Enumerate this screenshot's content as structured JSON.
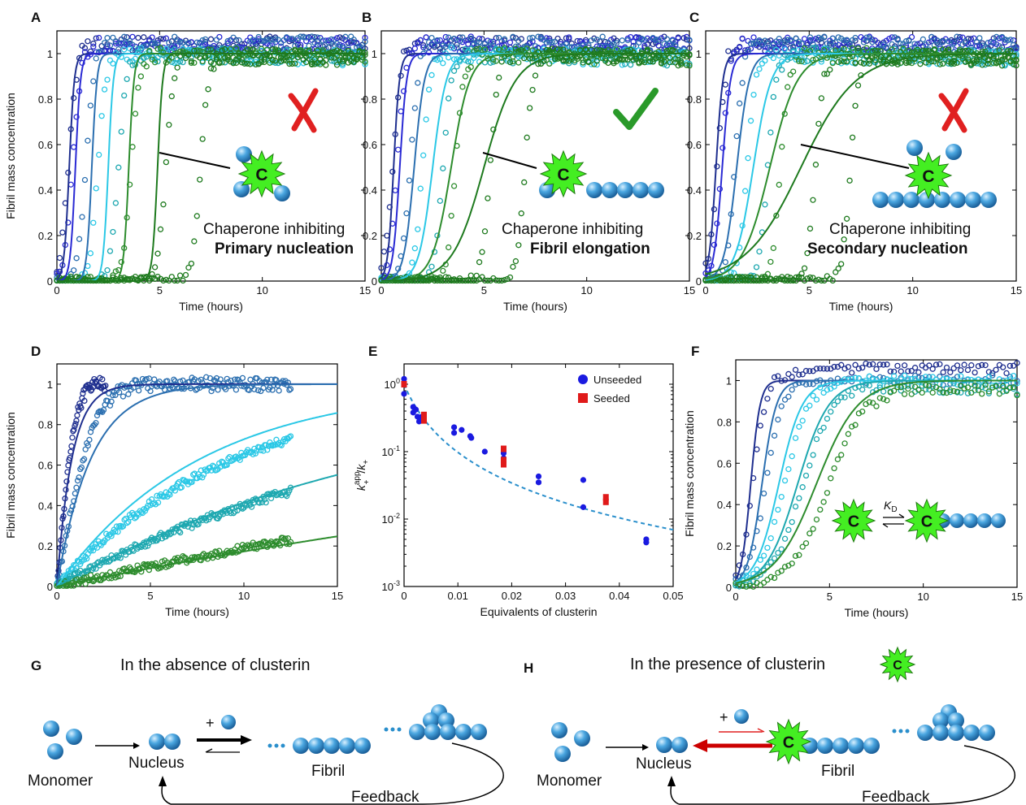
{
  "panel_letters": {
    "A": "A",
    "B": "B",
    "C": "C",
    "D": "D",
    "E": "E",
    "F": "F",
    "G": "G",
    "H": "H"
  },
  "colors": {
    "c1": "#1f2f8f",
    "c2": "#2a2ad4",
    "c3": "#2b6fb0",
    "c4": "#2bc8e6",
    "c5": "#1ea8b0",
    "c6": "#2d8c2d",
    "c7": "#1e7a1e",
    "red": "#e02020",
    "check": "#2a9a2a",
    "chaperone": "#44ee22",
    "sphere": "#3d9ad8",
    "dash": "#2a8fcc"
  },
  "icons": {
    "cross": "red-cross-icon",
    "check": "green-check-icon",
    "chaperone": "chaperone-star-icon",
    "monomer": "monomer-sphere-icon"
  },
  "panel_annotations": {
    "A": {
      "line1": "Chaperone inhibiting",
      "line2": "Primary nucleation",
      "mark": "cross"
    },
    "B": {
      "line1": "Chaperone inhibiting",
      "line2": "Fibril elongation",
      "mark": "check"
    },
    "C": {
      "line1": "Chaperone inhibiting",
      "line2": "Secondary nucleation",
      "mark": "cross"
    }
  },
  "chaperone_letter": "C",
  "kd_label": {
    "K": "K",
    "sub": "D"
  },
  "e_ylabel": {
    "k1": "k",
    "sup": "app",
    "sub": "+",
    "slash": "/",
    "k2": "k",
    "sub2": "+"
  },
  "scheme": {
    "G": {
      "title": "In the absence of clusterin",
      "monomer": "Monomer",
      "nucleus": "Nucleus",
      "fibril": "Fibril",
      "feedback": "Feedback",
      "plus": "+"
    },
    "H": {
      "title": "In the presence of clusterin",
      "monomer": "Monomer",
      "nucleus": "Nucleus",
      "fibril": "Fibril",
      "feedback": "Feedback",
      "plus": "+"
    }
  },
  "chart_data": [
    {
      "panel": "A",
      "type": "scatter",
      "xlabel": "Time (hours)",
      "ylabel": "Fibril mass concentration",
      "xlim": [
        0,
        15
      ],
      "ylim": [
        0,
        1.1
      ],
      "xticks": [
        0,
        5,
        10,
        15
      ],
      "yticks": [
        0,
        0.2,
        0.4,
        0.6,
        0.8,
        1
      ],
      "series": [
        {
          "data_t50": [
            0.55,
            0.75,
            1.4,
            2.0,
            3.0,
            3.6,
            5.3,
            7.0
          ],
          "data_k": 5.0
        },
        {
          "fit_t50": [
            0.6,
            0.9,
            1.7,
            2.5,
            3.5,
            4.9
          ],
          "fit_k": 8.0
        }
      ]
    },
    {
      "panel": "B",
      "type": "scatter",
      "xlabel": "Time (hours)",
      "ylabel": "",
      "xlim": [
        0,
        15
      ],
      "ylim": [
        0,
        1.1
      ],
      "xticks": [
        0,
        5,
        10,
        15
      ],
      "yticks": [
        0,
        0.2,
        0.4,
        0.6,
        0.8,
        1
      ],
      "series": [
        {
          "data_t50": [
            0.55,
            0.75,
            1.4,
            2.0,
            3.0,
            3.6,
            5.3,
            7.0
          ],
          "data_k": 5.0
        },
        {
          "fit_t50": [
            0.6,
            0.9,
            1.6,
            2.5,
            3.4,
            5.0
          ],
          "fit_k": [
            7.0,
            6.0,
            4.0,
            3.0,
            2.2,
            1.3
          ]
        }
      ]
    },
    {
      "panel": "C",
      "type": "scatter",
      "xlabel": "Time (hours)",
      "ylabel": "",
      "xlim": [
        0,
        15
      ],
      "ylim": [
        0,
        1.1
      ],
      "xticks": [
        0,
        5,
        10,
        15
      ],
      "yticks": [
        0,
        0.2,
        0.4,
        0.6,
        0.8,
        1
      ],
      "series": [
        {
          "data_t50": [
            0.55,
            0.75,
            1.4,
            2.0,
            3.0,
            3.6,
            5.3,
            7.0
          ],
          "data_k": 5.0
        },
        {
          "fit_t50": [
            0.5,
            0.8,
            1.5,
            2.3,
            3.1,
            4.6
          ],
          "fit_k": [
            6.0,
            5.0,
            3.3,
            2.3,
            1.5,
            0.75
          ]
        }
      ]
    },
    {
      "panel": "D",
      "type": "scatter",
      "xlabel": "Time (hours)",
      "ylabel": "Fibril mass concentration",
      "xlim": [
        0,
        15
      ],
      "ylim": [
        0,
        1.1
      ],
      "xticks": [
        0,
        5,
        10,
        15
      ],
      "yticks": [
        0,
        0.2,
        0.4,
        0.6,
        0.8,
        1
      ],
      "seeded_rates": [
        1.05,
        0.5,
        0.105,
        0.051,
        0.021
      ],
      "fit_rates": [
        1.25,
        0.55,
        0.13,
        0.0535,
        0.019
      ],
      "data_tmax": [
        2.6,
        12.5,
        12.5,
        12.5,
        12.5
      ]
    },
    {
      "panel": "E",
      "type": "scatter",
      "xlabel": "Equivalents of clusterin",
      "ylabel": "",
      "xlim": [
        0,
        0.05
      ],
      "ylim": [
        0.001,
        2
      ],
      "yscale": "log",
      "xticks": [
        0,
        0.01,
        0.02,
        0.03,
        0.04,
        0.05
      ],
      "xtick_labels": [
        "0",
        "0.01",
        "0.02",
        "0.03",
        "0.04",
        "0.05"
      ],
      "yticks": [
        0.001,
        0.01,
        0.1,
        1
      ],
      "legend": [
        "Unseeded",
        "Seeded"
      ],
      "legend_position": "top-right",
      "unseeded": [
        [
          0.0,
          1.2
        ],
        [
          0.0,
          1.0
        ],
        [
          0.0,
          0.72
        ],
        [
          0.0017,
          0.46
        ],
        [
          0.0017,
          0.38
        ],
        [
          0.0022,
          0.42
        ],
        [
          0.0025,
          0.33
        ],
        [
          0.0028,
          0.28
        ],
        [
          0.0033,
          0.33
        ],
        [
          0.0093,
          0.23
        ],
        [
          0.0093,
          0.19
        ],
        [
          0.0107,
          0.21
        ],
        [
          0.0123,
          0.17
        ],
        [
          0.0125,
          0.16
        ],
        [
          0.015,
          0.1
        ],
        [
          0.0185,
          0.095
        ],
        [
          0.0185,
          0.08
        ],
        [
          0.025,
          0.043
        ],
        [
          0.025,
          0.035
        ],
        [
          0.0333,
          0.038
        ],
        [
          0.0333,
          0.015
        ],
        [
          0.045,
          0.005
        ],
        [
          0.045,
          0.0045
        ]
      ],
      "seeded": [
        [
          0.0,
          1.0
        ],
        [
          0.0037,
          0.35
        ],
        [
          0.0037,
          0.29
        ],
        [
          0.0185,
          0.11
        ],
        [
          0.0185,
          0.075
        ],
        [
          0.0185,
          0.065
        ],
        [
          0.0375,
          0.021
        ],
        [
          0.0375,
          0.018
        ]
      ],
      "fit": {
        "style": "dashed",
        "form": "1/(1+a*x)^2",
        "a": 220
      }
    },
    {
      "panel": "F",
      "type": "scatter",
      "xlabel": "Time (hours)",
      "ylabel": "Fibril mass concentration",
      "xlim": [
        0,
        15
      ],
      "ylim": [
        0,
        1.1
      ],
      "xticks": [
        0,
        5,
        10,
        15
      ],
      "yticks": [
        0,
        0.2,
        0.4,
        0.6,
        0.8,
        1
      ],
      "data_t50": [
        0.9,
        1.6,
        2.6,
        3.6,
        5.0
      ],
      "data_k": [
        3.0,
        2.2,
        1.5,
        1.2,
        1.0
      ],
      "fit_t50": [
        0.8,
        1.4,
        2.3,
        3.3,
        4.3
      ],
      "fit_k": [
        4.0,
        2.6,
        1.6,
        1.2,
        0.9
      ]
    }
  ]
}
